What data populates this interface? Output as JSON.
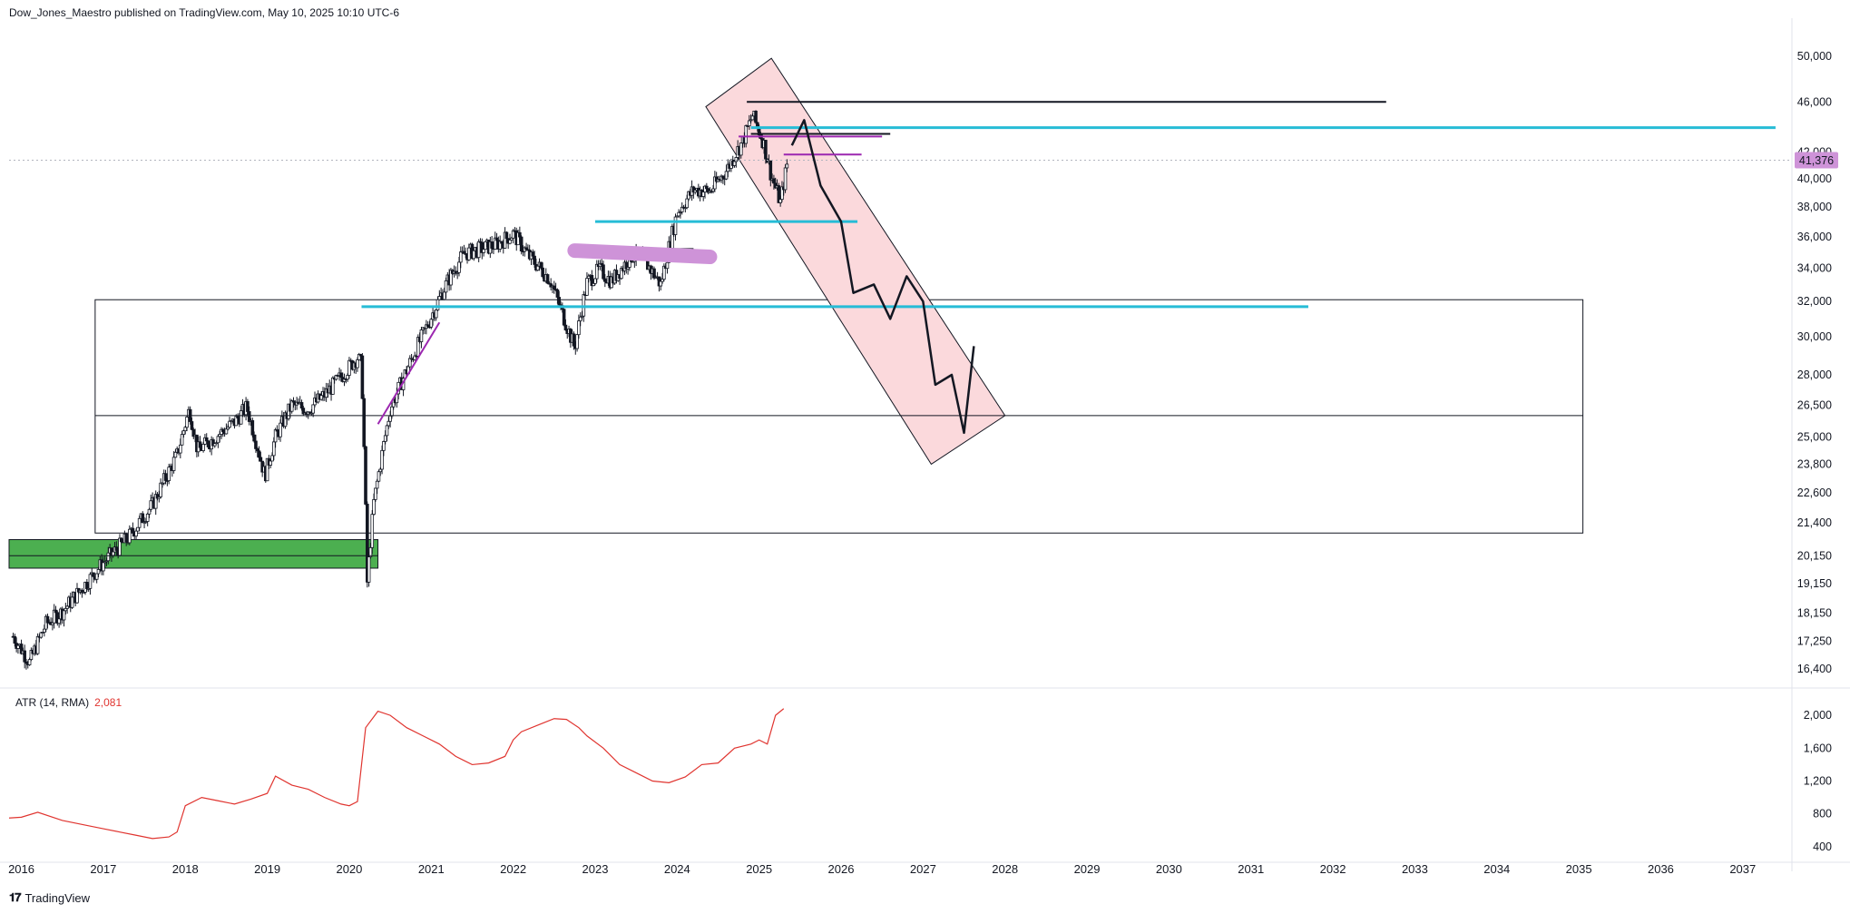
{
  "header": {
    "published_line": "Dow_Jones_Maestro published on TradingView.com, May 10, 2025 10:10 UTC-6"
  },
  "brand": {
    "name": "TradingView",
    "logo_icon": "tradingview-logo-icon"
  },
  "colors": {
    "candle": "#131722",
    "cyan": "#26bcd6",
    "magenta": "#9c27b0",
    "lavender": "#ce93d8",
    "channel_fill": "#fbd9dc",
    "green_zone": "#4caf50",
    "atr_line": "#e0342f",
    "price_badge": "#ce93d8"
  },
  "price_scale": {
    "ticks": [
      "50,000",
      "46,000",
      "42,000",
      "40,000",
      "38,000",
      "36,000",
      "34,000",
      "32,000",
      "30,000",
      "28,000",
      "26,500",
      "25,000",
      "23,800",
      "22,600",
      "21,400",
      "20,150",
      "19,150",
      "18,150",
      "17,250",
      "16,400"
    ],
    "last_price_badge": "41,376"
  },
  "atr_scale": {
    "ticks": [
      "2,000",
      "1,600",
      "1,200",
      "800",
      "400"
    ]
  },
  "time_axis": {
    "ticks": [
      "2016",
      "2017",
      "2018",
      "2019",
      "2020",
      "2021",
      "2022",
      "2023",
      "2024",
      "2025",
      "2026",
      "2027",
      "2028",
      "2029",
      "2030",
      "2031",
      "2032",
      "2033",
      "2034",
      "2035",
      "2036",
      "2037"
    ]
  },
  "atr_legend": {
    "label": "ATR (14, RMA)",
    "value": "2,081"
  },
  "chart_data": [
    {
      "type": "line",
      "subtype": "candlestick",
      "y_scale": "log",
      "x_unit": "year",
      "ylim": [
        16000,
        52000
      ],
      "xlim": [
        2015.85,
        2037.6
      ],
      "series": [
        {
          "x": [
            2015.9,
            2016.1,
            2016.3,
            2016.5,
            2016.8,
            2017.0,
            2017.3,
            2017.6,
            2017.9,
            2018.05,
            2018.15,
            2018.3,
            2018.6,
            2018.75,
            2018.97,
            2019.1,
            2019.3,
            2019.5,
            2019.7,
            2019.9,
            2020.1,
            2020.15,
            2020.22,
            2020.3,
            2020.5,
            2020.8,
            2020.95,
            2021.2,
            2021.4,
            2021.6,
            2021.8,
            2022.0,
            2022.2,
            2022.45,
            2022.6,
            2022.75,
            2022.9,
            2023.05,
            2023.2,
            2023.45,
            2023.6,
            2023.8,
            2024.0,
            2024.2,
            2024.4,
            2024.6,
            2024.8,
            2024.92,
            2025.05,
            2025.15,
            2025.26,
            2025.35
          ],
          "values": [
            17400,
            16600,
            17800,
            18200,
            19200,
            19900,
            20800,
            22100,
            24200,
            26300,
            24400,
            24800,
            25700,
            26400,
            23300,
            25000,
            26500,
            26300,
            27000,
            27900,
            28900,
            28500,
            19200,
            22200,
            26300,
            29200,
            30600,
            33200,
            34900,
            35200,
            35500,
            36200,
            34700,
            33300,
            31300,
            29400,
            33100,
            33900,
            33200,
            34800,
            34500,
            33000,
            37600,
            39200,
            39100,
            40600,
            42800,
            44900,
            42800,
            40200,
            38300,
            41376
          ]
        },
        {
          "name": "",
          "x": [
            2025.4,
            2025.55,
            2025.75,
            2026.0,
            2026.15,
            2026.4,
            2026.6,
            2026.8,
            2027.0,
            2027.15,
            2027.35,
            2027.5,
            2027.62
          ],
          "values": [
            42500,
            44500,
            39500,
            37000,
            32500,
            33000,
            31000,
            33500,
            32000,
            27500,
            28000,
            25200,
            29500
          ]
        }
      ],
      "levels": [
        {
          "y": 46000,
          "x_from": 2024.85,
          "x_to": 2032.65
        },
        {
          "y": 43900,
          "x_from": 2024.9,
          "x_to": 2037.4
        },
        {
          "y": 43400,
          "x_from": 2024.9,
          "x_to": 2026.6
        },
        {
          "y": 37000,
          "x_from": 2023.0,
          "x_to": 2026.2
        },
        {
          "y": 31700,
          "x_from": 2020.15,
          "x_to": 2031.7
        },
        {
          "y": 35200,
          "x_from": 2023.1,
          "x_to": 2024.2
        },
        {
          "y": 41800,
          "x_from": 2025.3,
          "x_to": 2026.25
        },
        {
          "y": 43200,
          "x_from": 2024.75,
          "x_to": 2026.5
        },
        {
          "y": 20150,
          "x_from": 2015.85,
          "x_to": 2020.35
        },
        {
          "y": 26000,
          "x_from": 2016.9,
          "x_to": 2035.05
        }
      ],
      "zones": [
        {
          "x_from": 2016.9,
          "x_to": 2035.05,
          "y_from": 21000,
          "y_to": 32100
        },
        {
          "x_from": 2015.85,
          "x_to": 2020.35,
          "y_from": 19700,
          "y_to": 20750
        }
      ]
    },
    {
      "type": "line",
      "ylim": [
        300,
        2200
      ],
      "xlim": [
        2015.85,
        2037.6
      ],
      "x": [
        2015.85,
        2016.0,
        2016.2,
        2016.5,
        2016.8,
        2017.0,
        2017.2,
        2017.4,
        2017.6,
        2017.8,
        2017.9,
        2018.0,
        2018.2,
        2018.4,
        2018.6,
        2018.8,
        2019.0,
        2019.1,
        2019.3,
        2019.5,
        2019.7,
        2019.9,
        2020.0,
        2020.1,
        2020.2,
        2020.35,
        2020.5,
        2020.7,
        2020.9,
        2021.1,
        2021.3,
        2021.5,
        2021.7,
        2021.9,
        2022.0,
        2022.1,
        2022.3,
        2022.5,
        2022.65,
        2022.8,
        2022.9,
        2023.1,
        2023.3,
        2023.5,
        2023.7,
        2023.9,
        2024.1,
        2024.3,
        2024.5,
        2024.7,
        2024.9,
        2025.0,
        2025.1,
        2025.2,
        2025.3
      ],
      "values": [
        750,
        760,
        820,
        720,
        660,
        620,
        580,
        540,
        500,
        520,
        580,
        900,
        1000,
        960,
        920,
        980,
        1050,
        1260,
        1150,
        1100,
        1000,
        920,
        900,
        950,
        1850,
        2050,
        2000,
        1850,
        1750,
        1650,
        1500,
        1400,
        1420,
        1500,
        1700,
        1800,
        1880,
        1960,
        1950,
        1850,
        1750,
        1600,
        1400,
        1300,
        1200,
        1180,
        1250,
        1400,
        1420,
        1600,
        1650,
        1700,
        1650,
        2000,
        2081
      ]
    }
  ]
}
